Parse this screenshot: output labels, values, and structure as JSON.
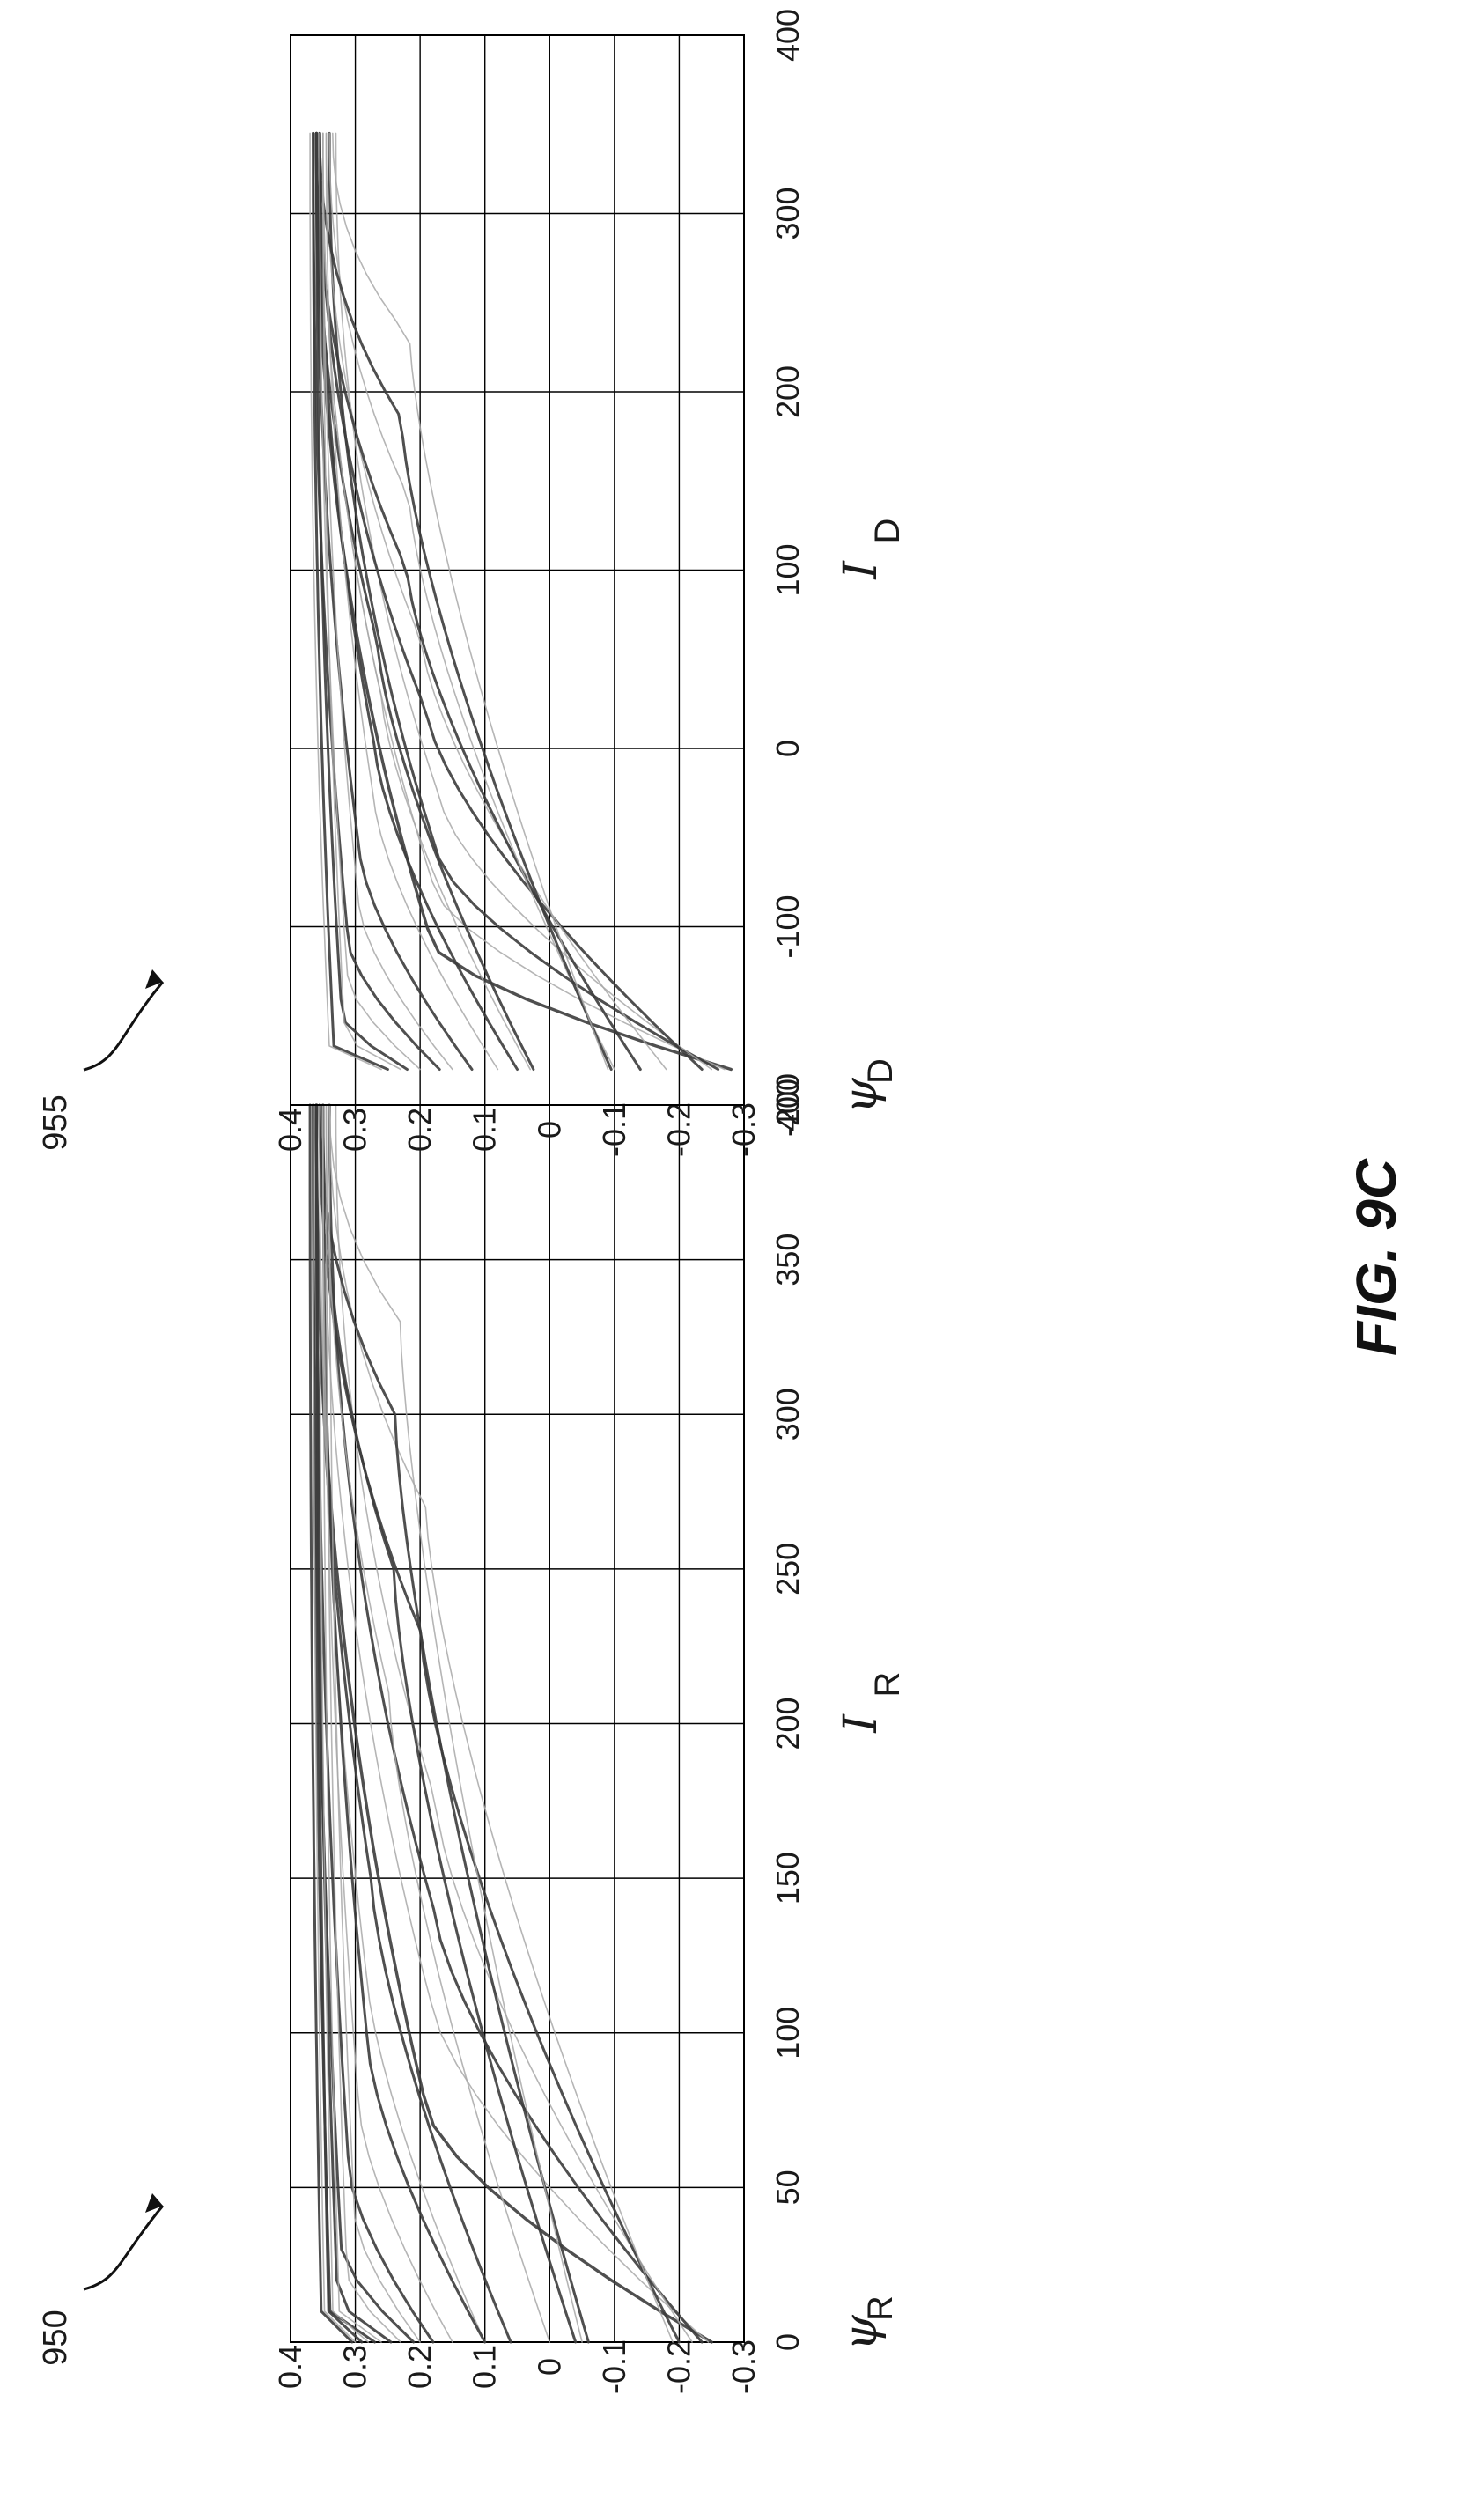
{
  "figure": {
    "caption": "FIG. 9C",
    "orientation": "rotated 90 degrees counter-clockwise",
    "colors": {
      "background": "#ffffff",
      "dark_curve": "#3c3c3c",
      "light_curve": "#a8a8a8",
      "grid": "#000000"
    }
  },
  "chart_data": [
    {
      "type": "line",
      "ref_label": "950",
      "ylabel": "ψ",
      "ylabel_sub": "R",
      "xlabel": "I",
      "xlabel_sub": "R",
      "xlim": [
        0,
        400
      ],
      "ylim": [
        -0.3,
        0.4
      ],
      "xticks": [
        "0",
        "50",
        "100",
        "150",
        "200",
        "250",
        "300",
        "350",
        "400"
      ],
      "yticks": [
        "-0.3",
        "-0.2",
        "-0.1",
        "0",
        "0.1",
        "0.2",
        "0.3",
        "0.4"
      ],
      "grid": true,
      "series_description": "family of flux-linkage curves, each converging near 0.30 to 0.36 at I = 400",
      "series": [
        {
          "start": [
            0,
            -0.25
          ],
          "end": [
            400,
            0.36
          ],
          "knee_x": 75,
          "width": 3.4,
          "tone": "dark"
        },
        {
          "start": [
            0,
            -0.245
          ],
          "end": [
            400,
            0.35
          ],
          "knee_x": 110,
          "width": 1.6,
          "tone": "light"
        },
        {
          "start": [
            0,
            -0.235
          ],
          "end": [
            400,
            0.34
          ],
          "knee_x": 140,
          "width": 3.0,
          "tone": "dark"
        },
        {
          "start": [
            0,
            -0.22
          ],
          "end": [
            400,
            0.33
          ],
          "knee_x": 175,
          "width": 1.6,
          "tone": "light"
        },
        {
          "start": [
            0,
            -0.2
          ],
          "end": [
            400,
            0.355
          ],
          "knee_x": 230,
          "width": 3.0,
          "tone": "dark"
        },
        {
          "start": [
            0,
            -0.19
          ],
          "end": [
            400,
            0.34
          ],
          "knee_x": 270,
          "width": 1.6,
          "tone": "light"
        },
        {
          "start": [
            0,
            -0.06
          ],
          "end": [
            400,
            0.355
          ],
          "knee_x": 300,
          "width": 3.0,
          "tone": "dark"
        },
        {
          "start": [
            0,
            -0.05
          ],
          "end": [
            400,
            0.34
          ],
          "knee_x": 330,
          "width": 1.6,
          "tone": "light"
        },
        {
          "start": [
            0,
            -0.04
          ],
          "end": [
            400,
            0.35
          ],
          "knee_x": 250,
          "width": 3.0,
          "tone": "dark"
        },
        {
          "start": [
            0,
            0.0
          ],
          "end": [
            400,
            0.345
          ],
          "knee_x": 210,
          "width": 1.6,
          "tone": "light"
        },
        {
          "start": [
            0,
            0.06
          ],
          "end": [
            400,
            0.36
          ],
          "knee_x": 150,
          "width": 3.0,
          "tone": "dark"
        },
        {
          "start": [
            0,
            0.1
          ],
          "end": [
            400,
            0.355
          ],
          "knee_x": 120,
          "width": 1.6,
          "tone": "light"
        },
        {
          "start": [
            0,
            0.1
          ],
          "end": [
            400,
            0.35
          ],
          "knee_x": 95,
          "width": 3.0,
          "tone": "dark"
        },
        {
          "start": [
            0,
            0.15
          ],
          "end": [
            400,
            0.35
          ],
          "knee_x": 75,
          "width": 1.6,
          "tone": "light"
        },
        {
          "start": [
            0,
            0.18
          ],
          "end": [
            400,
            0.36
          ],
          "knee_x": 55,
          "width": 3.0,
          "tone": "dark"
        },
        {
          "start": [
            0,
            0.2
          ],
          "end": [
            400,
            0.34
          ],
          "knee_x": 40,
          "width": 1.6,
          "tone": "light"
        },
        {
          "start": [
            0,
            0.21
          ],
          "end": [
            400,
            0.365
          ],
          "knee_x": 30,
          "width": 3.0,
          "tone": "dark"
        },
        {
          "start": [
            0,
            0.23
          ],
          "end": [
            400,
            0.345
          ],
          "knee_x": 22,
          "width": 1.6,
          "tone": "light"
        },
        {
          "start": [
            0,
            0.245
          ],
          "end": [
            400,
            0.36
          ],
          "knee_x": 15,
          "width": 3.0,
          "tone": "dark"
        },
        {
          "start": [
            0,
            0.26
          ],
          "end": [
            400,
            0.35
          ],
          "knee_x": 10,
          "width": 1.6,
          "tone": "light"
        },
        {
          "start": [
            0,
            0.27
          ],
          "end": [
            400,
            0.365
          ],
          "knee_x": 6,
          "width": 3.0,
          "tone": "dark"
        },
        {
          "start": [
            0,
            0.28
          ],
          "end": [
            400,
            0.355
          ],
          "knee_x": 4,
          "width": 1.6,
          "tone": "light"
        },
        {
          "start": [
            0,
            0.29
          ],
          "end": [
            400,
            0.36
          ],
          "knee_x": 2,
          "width": 3.0,
          "tone": "dark"
        },
        {
          "start": [
            0,
            0.3
          ],
          "end": [
            400,
            0.365
          ],
          "knee_x": 1,
          "width": 1.6,
          "tone": "light"
        },
        {
          "start": [
            0,
            0.305
          ],
          "end": [
            400,
            0.37
          ],
          "knee_x": 1,
          "width": 3.0,
          "tone": "dark"
        }
      ]
    },
    {
      "type": "line",
      "ref_label": "955",
      "ylabel": "ψ",
      "ylabel_sub": "D",
      "xlabel": "I",
      "xlabel_sub": "D",
      "xlim": [
        -200,
        400
      ],
      "ylim": [
        -0.3,
        0.4
      ],
      "xticks": [
        "-200",
        "-100",
        "0",
        "100",
        "200",
        "300",
        "400"
      ],
      "yticks": [
        "-0.3",
        "-0.2",
        "-0.1",
        "0",
        "0.1",
        "0.2",
        "0.3",
        "0.4"
      ],
      "grid": true,
      "series_description": "family of flux-linkage curves from I = -180 to I = 345, converging near 0.34 to 0.37",
      "series": [
        {
          "start": [
            -180,
            -0.28
          ],
          "end": [
            345,
            0.36
          ],
          "knee_x": -110,
          "width": 3.4,
          "tone": "dark"
        },
        {
          "start": [
            -180,
            -0.27
          ],
          "end": [
            345,
            0.35
          ],
          "knee_x": -80,
          "width": 1.6,
          "tone": "light"
        },
        {
          "start": [
            -180,
            -0.26
          ],
          "end": [
            345,
            0.34
          ],
          "knee_x": -60,
          "width": 3.0,
          "tone": "dark"
        },
        {
          "start": [
            -180,
            -0.25
          ],
          "end": [
            345,
            0.33
          ],
          "knee_x": -30,
          "width": 1.6,
          "tone": "light"
        },
        {
          "start": [
            -180,
            -0.235
          ],
          "end": [
            345,
            0.355
          ],
          "knee_x": 20,
          "width": 3.0,
          "tone": "dark"
        },
        {
          "start": [
            -180,
            -0.18
          ],
          "end": [
            345,
            0.345
          ],
          "knee_x": 60,
          "width": 1.6,
          "tone": "light"
        },
        {
          "start": [
            -180,
            -0.14
          ],
          "end": [
            345,
            0.36
          ],
          "knee_x": 100,
          "width": 3.0,
          "tone": "dark"
        },
        {
          "start": [
            -180,
            -0.1
          ],
          "end": [
            345,
            0.34
          ],
          "knee_x": 140,
          "width": 1.6,
          "tone": "light"
        },
        {
          "start": [
            -180,
            -0.095
          ],
          "end": [
            345,
            0.355
          ],
          "knee_x": 185,
          "width": 3.0,
          "tone": "dark"
        },
        {
          "start": [
            -180,
            -0.09
          ],
          "end": [
            345,
            0.335
          ],
          "knee_x": 230,
          "width": 1.6,
          "tone": "light"
        },
        {
          "start": [
            -180,
            0.025
          ],
          "end": [
            345,
            0.36
          ],
          "knee_x": 60,
          "width": 3.0,
          "tone": "dark"
        },
        {
          "start": [
            -180,
            0.03
          ],
          "end": [
            345,
            0.35
          ],
          "knee_x": 30,
          "width": 1.6,
          "tone": "light"
        },
        {
          "start": [
            -180,
            0.05
          ],
          "end": [
            345,
            0.355
          ],
          "knee_x": 0,
          "width": 3.0,
          "tone": "dark"
        },
        {
          "start": [
            -180,
            0.08
          ],
          "end": [
            345,
            0.345
          ],
          "knee_x": -30,
          "width": 1.6,
          "tone": "light"
        },
        {
          "start": [
            -180,
            0.12
          ],
          "end": [
            345,
            0.36
          ],
          "knee_x": -60,
          "width": 3.0,
          "tone": "dark"
        },
        {
          "start": [
            -180,
            0.15
          ],
          "end": [
            345,
            0.35
          ],
          "knee_x": -90,
          "width": 1.6,
          "tone": "light"
        },
        {
          "start": [
            -180,
            0.17
          ],
          "end": [
            345,
            0.365
          ],
          "knee_x": -110,
          "width": 3.0,
          "tone": "dark"
        },
        {
          "start": [
            -180,
            0.2
          ],
          "end": [
            345,
            0.355
          ],
          "knee_x": -130,
          "width": 1.6,
          "tone": "light"
        },
        {
          "start": [
            -180,
            0.22
          ],
          "end": [
            345,
            0.36
          ],
          "knee_x": -150,
          "width": 3.0,
          "tone": "dark"
        },
        {
          "start": [
            -180,
            0.23
          ],
          "end": [
            345,
            0.35
          ],
          "knee_x": -160,
          "width": 1.6,
          "tone": "light"
        },
        {
          "start": [
            -180,
            0.25
          ],
          "end": [
            345,
            0.365
          ],
          "knee_x": -170,
          "width": 3.0,
          "tone": "dark"
        },
        {
          "start": [
            -180,
            0.26
          ],
          "end": [
            345,
            0.37
          ],
          "knee_x": -175,
          "width": 1.6,
          "tone": "light"
        }
      ]
    }
  ]
}
